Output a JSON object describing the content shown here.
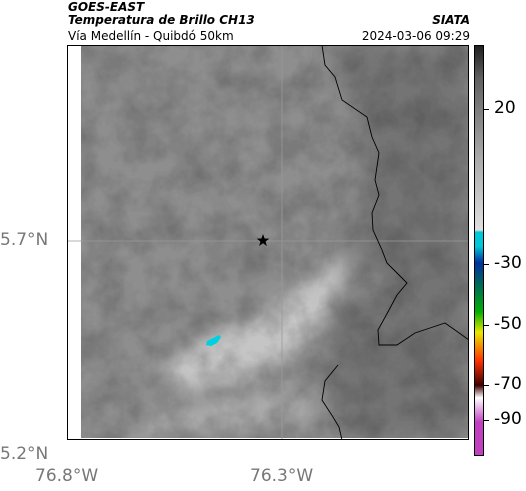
{
  "header": {
    "title": "GOES-EAST",
    "subtitle": "Temperatura de Brillo CH13",
    "organization": "SIATA",
    "place": "Vía Medellín - Quibdó 50km",
    "datetime": "2024-03-06 09:29"
  },
  "map": {
    "lat_labels": [
      "5.2°N",
      "5.7°N"
    ],
    "lon_labels": [
      "76.8°W",
      "76.3°W"
    ],
    "marker": "star-icon",
    "colors": {
      "cloud_gray": "#8a8a8a",
      "cold_spot": "#00d0e0",
      "border": "#000000"
    }
  },
  "colorbar": {
    "ticks": [
      "20",
      "-30",
      "-50",
      "-70",
      "-90"
    ],
    "colors": [
      "#202020",
      "#606060",
      "#a8a8a8",
      "#e0e0e0",
      "#00c8d8",
      "#0030a0",
      "#00b000",
      "#e8e800",
      "#ff3000",
      "#400000",
      "#ffffff",
      "#c040c0"
    ]
  }
}
